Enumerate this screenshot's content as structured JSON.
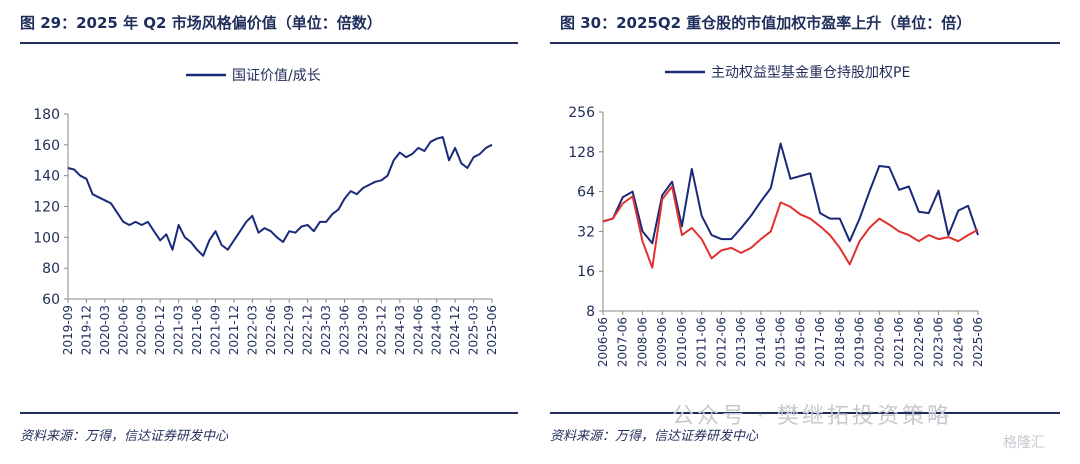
{
  "watermark": {
    "main": "公众号 · 樊继拓投资策略",
    "corner": "格隆汇"
  },
  "left": {
    "figure_title": "图 29：2025 年 Q2 市场风格偏价值（单位：倍数）",
    "source": "资料来源：万得，信达证券研发中心"
  },
  "right": {
    "figure_title": "图 30：2025Q2 重仓股的市值加权市盈率上升（单位：倍）",
    "source": "资料来源：万得，信达证券研发中心"
  },
  "chart_data": [
    {
      "type": "line",
      "title": "",
      "xlabel": "",
      "ylabel": "",
      "ylim": [
        60,
        180
      ],
      "yticks": [
        "60",
        "80",
        "100",
        "120",
        "140",
        "160",
        "180"
      ],
      "xticks": [
        "2019-09",
        "2019-12",
        "2020-03",
        "2020-06",
        "2020-09",
        "2020-12",
        "2021-03",
        "2021-06",
        "2021-09",
        "2021-12",
        "2022-03",
        "2022-06",
        "2022-09",
        "2022-12",
        "2023-03",
        "2023-06",
        "2023-09",
        "2023-12",
        "2024-03",
        "2024-06",
        "2024-09",
        "2024-12",
        "2025-03",
        "2025-06"
      ],
      "legend_position": "top-center",
      "grid": false,
      "series": [
        {
          "name": "国证价值/成长",
          "color": "#1b2a78",
          "x": [
            "2019-09",
            "2019-10",
            "2019-11",
            "2019-12",
            "2020-01",
            "2020-02",
            "2020-03",
            "2020-04",
            "2020-05",
            "2020-06",
            "2020-07",
            "2020-08",
            "2020-09",
            "2020-10",
            "2020-11",
            "2020-12",
            "2021-01",
            "2021-02",
            "2021-03",
            "2021-04",
            "2021-05",
            "2021-06",
            "2021-07",
            "2021-08",
            "2021-09",
            "2021-10",
            "2021-11",
            "2021-12",
            "2022-01",
            "2022-02",
            "2022-03",
            "2022-04",
            "2022-05",
            "2022-06",
            "2022-07",
            "2022-08",
            "2022-09",
            "2022-10",
            "2022-11",
            "2022-12",
            "2023-01",
            "2023-02",
            "2023-03",
            "2023-04",
            "2023-05",
            "2023-06",
            "2023-07",
            "2023-08",
            "2023-09",
            "2023-10",
            "2023-11",
            "2023-12",
            "2024-01",
            "2024-02",
            "2024-03",
            "2024-04",
            "2024-05",
            "2024-06",
            "2024-07",
            "2024-08",
            "2024-09",
            "2024-10",
            "2024-11",
            "2024-12",
            "2025-01",
            "2025-02",
            "2025-03",
            "2025-04",
            "2025-05",
            "2025-06"
          ],
          "values": [
            145,
            144,
            140,
            138,
            128,
            126,
            124,
            122,
            116,
            110,
            108,
            110,
            108,
            110,
            104,
            98,
            102,
            92,
            108,
            100,
            97,
            92,
            88,
            98,
            104,
            95,
            92,
            98,
            104,
            110,
            114,
            103,
            106,
            104,
            100,
            97,
            104,
            103,
            107,
            108,
            104,
            110,
            110,
            115,
            118,
            125,
            130,
            128,
            132,
            134,
            136,
            137,
            140,
            150,
            155,
            152,
            154,
            158,
            156,
            162,
            164,
            165,
            150,
            158,
            148,
            145,
            152,
            154,
            158,
            160
          ]
        }
      ]
    },
    {
      "type": "line",
      "title": "",
      "xlabel": "",
      "ylabel": "",
      "yscale": "log2",
      "ylim": [
        8,
        256
      ],
      "yticks": [
        "8",
        "16",
        "32",
        "64",
        "128",
        "256"
      ],
      "xticks": [
        "2006-06",
        "2007-06",
        "2008-06",
        "2009-06",
        "2010-06",
        "2011-06",
        "2012-06",
        "2013-06",
        "2014-06",
        "2015-06",
        "2016-06",
        "2017-06",
        "2018-06",
        "2019-06",
        "2020-06",
        "2021-06",
        "2022-06",
        "2023-06",
        "2024-06",
        "2025-06"
      ],
      "legend_position": "top-center",
      "grid": false,
      "series": [
        {
          "name": "主动权益型基金重仓持股加权PE",
          "color": "#1b2a78",
          "x": [
            "2006-06",
            "2006-12",
            "2007-06",
            "2007-12",
            "2008-06",
            "2008-12",
            "2009-06",
            "2009-12",
            "2010-06",
            "2010-12",
            "2011-06",
            "2011-12",
            "2012-06",
            "2012-12",
            "2013-06",
            "2013-12",
            "2014-06",
            "2014-12",
            "2015-06",
            "2015-12",
            "2016-06",
            "2016-12",
            "2017-06",
            "2017-12",
            "2018-06",
            "2018-12",
            "2019-06",
            "2019-12",
            "2020-06",
            "2020-12",
            "2021-06",
            "2021-12",
            "2022-06",
            "2022-12",
            "2023-06",
            "2023-12",
            "2024-06",
            "2024-12",
            "2025-06"
          ],
          "values": [
            38,
            40,
            58,
            64,
            32,
            26,
            60,
            76,
            35,
            95,
            42,
            30,
            28,
            28,
            34,
            42,
            54,
            68,
            148,
            80,
            84,
            88,
            44,
            40,
            40,
            27,
            40,
            64,
            100,
            98,
            66,
            70,
            45,
            44,
            65,
            30,
            46,
            50,
            30
          ]
        },
        {
          "name": "",
          "color": "#e0312e",
          "x": [
            "2006-06",
            "2006-12",
            "2007-06",
            "2007-12",
            "2008-06",
            "2008-12",
            "2009-06",
            "2009-12",
            "2010-06",
            "2010-12",
            "2011-06",
            "2011-12",
            "2012-06",
            "2012-12",
            "2013-06",
            "2013-12",
            "2014-06",
            "2014-12",
            "2015-06",
            "2015-12",
            "2016-06",
            "2016-12",
            "2017-06",
            "2017-12",
            "2018-06",
            "2018-12",
            "2019-06",
            "2019-12",
            "2020-06",
            "2020-12",
            "2021-06",
            "2021-12",
            "2022-06",
            "2022-12",
            "2023-06",
            "2023-12",
            "2024-06",
            "2024-12",
            "2025-06"
          ],
          "values": [
            38,
            40,
            52,
            59,
            27,
            17,
            56,
            70,
            30,
            34,
            28,
            20,
            23,
            24,
            22,
            24,
            28,
            32,
            53,
            49,
            43,
            40,
            35,
            30,
            24,
            18,
            27,
            34,
            40,
            36,
            32,
            30,
            27,
            30,
            28,
            29,
            27,
            30,
            33
          ]
        }
      ]
    }
  ]
}
